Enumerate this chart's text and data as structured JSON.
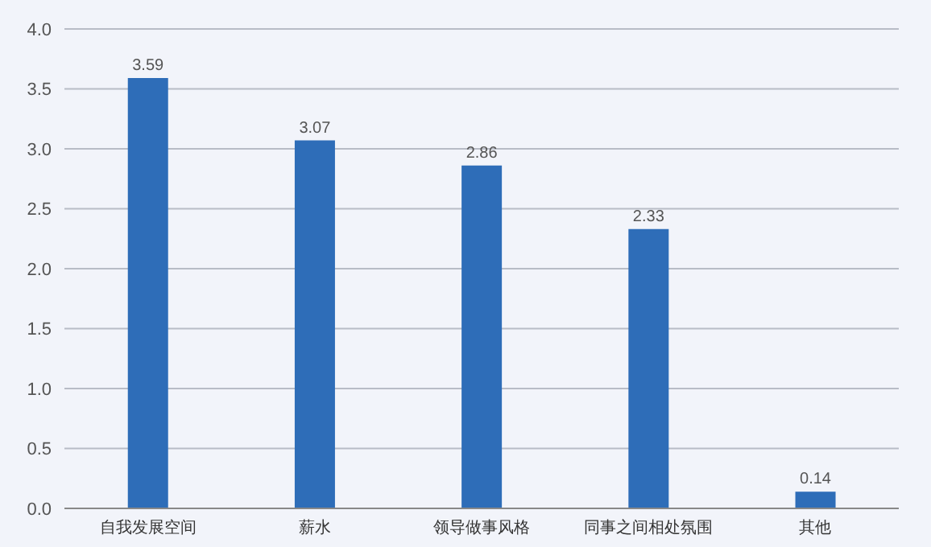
{
  "chart_data": {
    "type": "bar",
    "categories": [
      "自我发展空间",
      "薪水",
      "领导做事风格",
      "同事之间相处氛围",
      "其他"
    ],
    "values": [
      3.59,
      3.07,
      2.86,
      2.33,
      0.14
    ],
    "color": "#2e6db8",
    "ylim": [
      0,
      4
    ],
    "yticks": [
      {
        "value": 0,
        "label": "0.0"
      },
      {
        "value": 0.5,
        "label": "0.5"
      },
      {
        "value": 1,
        "label": "1.0"
      },
      {
        "value": 1.5,
        "label": "1.5"
      },
      {
        "value": 2,
        "label": "2.0"
      },
      {
        "value": 2.5,
        "label": "2.5"
      },
      {
        "value": 3,
        "label": "3.0"
      },
      {
        "value": 3.5,
        "label": "3.5"
      },
      {
        "value": 4,
        "label": "4.0"
      }
    ],
    "grid": "y",
    "data_labels": true
  }
}
